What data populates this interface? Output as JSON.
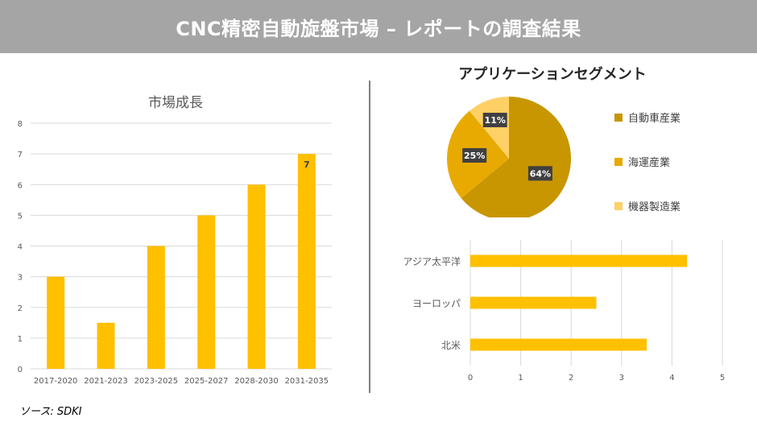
{
  "header": {
    "title": "CNC精密自動旋盤市場 – レポートの調査結果"
  },
  "source": "ソース: SDKI",
  "colors": {
    "header_bg": "#a5a5a5",
    "bar": "#ffc000",
    "pie_auto": "#c89600",
    "pie_marine": "#e8aa00",
    "pie_machine": "#ffd066",
    "label_bg": "#404040"
  },
  "chart_data": [
    {
      "type": "bar",
      "title": "市場成長",
      "categories": [
        "2017-2020",
        "2021-2023",
        "2023-2025",
        "2025-2027",
        "2028-2030",
        "2031-2035"
      ],
      "values": [
        3,
        1.5,
        4,
        5,
        6,
        7
      ],
      "data_labels": {
        "5": "7"
      },
      "ylim": [
        0,
        8
      ],
      "yticks": [
        "0",
        "1",
        "2",
        "3",
        "4",
        "5",
        "6",
        "7",
        "8"
      ],
      "grid": true
    },
    {
      "type": "pie",
      "title": "アプリケーションセグメント",
      "labels": [
        "自動車産業",
        "海運産業",
        "機器製造業"
      ],
      "values": [
        64,
        25,
        11
      ],
      "value_labels": [
        "64%",
        "25%",
        "11%"
      ],
      "legend": "right"
    },
    {
      "type": "bar",
      "orientation": "horizontal",
      "categories": [
        "アジア太平洋",
        "ヨーロッパ",
        "北米"
      ],
      "values": [
        4.3,
        2.5,
        3.5
      ],
      "xlim": [
        0,
        5
      ],
      "xticks": [
        "0",
        "1",
        "2",
        "3",
        "4",
        "5"
      ],
      "grid": true
    }
  ]
}
